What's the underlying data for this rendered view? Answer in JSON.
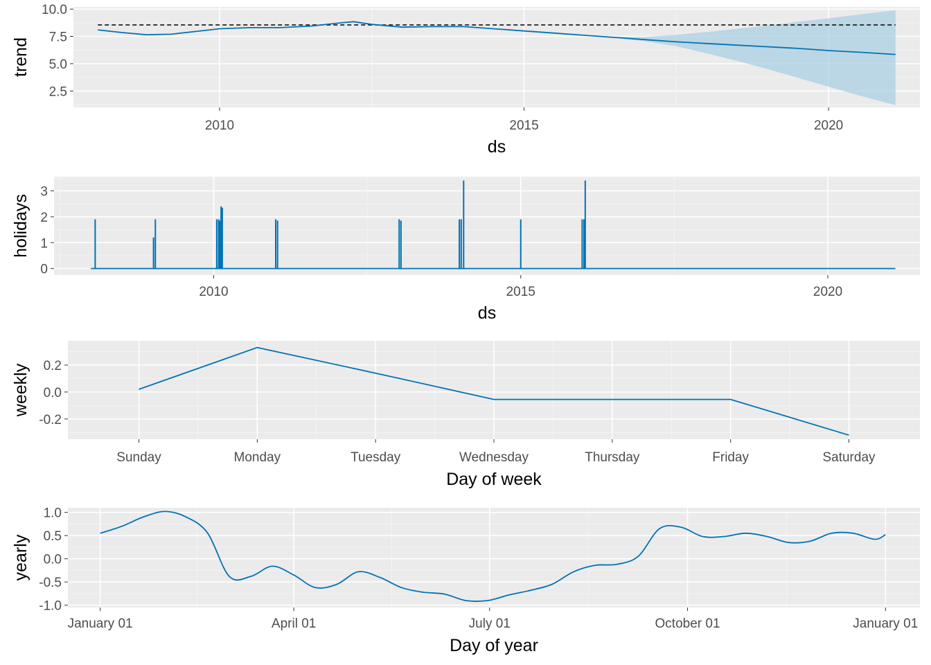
{
  "chart_data": [
    {
      "type": "line",
      "id": "trend",
      "xlabel": "ds",
      "ylabel": "trend",
      "xlim": [
        2007.6,
        2021.5
      ],
      "ylim": [
        1.0,
        10.2
      ],
      "xticks": [
        2010,
        2015,
        2020
      ],
      "xtick_labels": [
        "2010",
        "2015",
        "2020"
      ],
      "yticks": [
        2.5,
        5.0,
        7.5,
        10.0
      ],
      "ytick_labels": [
        "2.5",
        "5.0",
        "7.5",
        "10.0"
      ],
      "series": [
        {
          "kind": "line",
          "x": [
            2008.0,
            2008.4,
            2008.8,
            2009.2,
            2009.6,
            2010.0,
            2010.5,
            2011.0,
            2011.5,
            2012.0,
            2012.2,
            2012.5,
            2013.0,
            2013.5,
            2014.0,
            2014.5,
            2015.0,
            2015.5,
            2016.0,
            2016.5,
            2017.0,
            2017.5,
            2018.0,
            2018.5,
            2019.0,
            2019.5,
            2020.0,
            2020.5,
            2021.1
          ],
          "y": [
            8.1,
            7.85,
            7.65,
            7.7,
            7.95,
            8.2,
            8.3,
            8.3,
            8.45,
            8.75,
            8.85,
            8.6,
            8.35,
            8.4,
            8.4,
            8.2,
            8.0,
            7.8,
            7.6,
            7.4,
            7.2,
            7.0,
            6.85,
            6.7,
            6.55,
            6.4,
            6.2,
            6.05,
            5.85
          ]
        },
        {
          "kind": "band",
          "x": [
            2016.5,
            2017.0,
            2017.5,
            2018.0,
            2018.5,
            2019.0,
            2019.5,
            2020.0,
            2020.5,
            2021.1
          ],
          "upper": [
            7.45,
            7.45,
            7.65,
            7.9,
            8.2,
            8.5,
            8.85,
            9.15,
            9.5,
            9.9
          ],
          "lower": [
            7.35,
            7.05,
            6.6,
            5.95,
            5.25,
            4.5,
            3.7,
            2.9,
            2.1,
            1.2
          ]
        },
        {
          "kind": "dashed",
          "x": [
            2008.0,
            2021.1
          ],
          "y": [
            8.55,
            8.55
          ]
        }
      ]
    },
    {
      "type": "line",
      "id": "holidays",
      "xlabel": "ds",
      "ylabel": "holidays",
      "xlim": [
        2007.4,
        2021.5
      ],
      "ylim": [
        -0.25,
        3.55
      ],
      "xticks": [
        2010,
        2015,
        2020
      ],
      "xtick_labels": [
        "2010",
        "2015",
        "2020"
      ],
      "yticks": [
        0,
        1,
        2,
        3
      ],
      "ytick_labels": [
        "0",
        "1",
        "2",
        "3"
      ],
      "baseline": [
        2008.0,
        2021.1
      ],
      "spikes": [
        {
          "x": 2008.07,
          "y": 1.9
        },
        {
          "x": 2009.02,
          "y": 1.2
        },
        {
          "x": 2009.05,
          "y": 1.9
        },
        {
          "x": 2010.05,
          "y": 1.9
        },
        {
          "x": 2010.08,
          "y": 1.9
        },
        {
          "x": 2010.1,
          "y": 1.85
        },
        {
          "x": 2010.12,
          "y": 2.4
        },
        {
          "x": 2010.14,
          "y": 2.35
        },
        {
          "x": 2011.01,
          "y": 1.9
        },
        {
          "x": 2011.04,
          "y": 1.85
        },
        {
          "x": 2013.02,
          "y": 1.9
        },
        {
          "x": 2013.05,
          "y": 1.85
        },
        {
          "x": 2014.0,
          "y": 1.9
        },
        {
          "x": 2014.03,
          "y": 1.9
        },
        {
          "x": 2014.07,
          "y": 3.4
        },
        {
          "x": 2015.0,
          "y": 1.9
        },
        {
          "x": 2016.0,
          "y": 1.9
        },
        {
          "x": 2016.03,
          "y": 1.9
        },
        {
          "x": 2016.05,
          "y": 3.4
        }
      ]
    },
    {
      "type": "line",
      "id": "weekly",
      "xlabel": "Day of week",
      "ylabel": "weekly",
      "categories": [
        "Sunday",
        "Monday",
        "Tuesday",
        "Wednesday",
        "Thursday",
        "Friday",
        "Saturday"
      ],
      "values": [
        0.02,
        0.33,
        0.14,
        -0.055,
        -0.055,
        -0.055,
        -0.32
      ],
      "ylim": [
        -0.35,
        0.38
      ],
      "yticks": [
        -0.2,
        0.0,
        0.2
      ],
      "ytick_labels": [
        "-0.2",
        "0.0",
        "0.2"
      ]
    },
    {
      "type": "line",
      "id": "yearly",
      "xlabel": "Day of year",
      "ylabel": "yearly",
      "xlim": [
        -15,
        381
      ],
      "ylim": [
        -1.05,
        1.1
      ],
      "xticks": [
        0,
        90,
        181,
        273,
        365
      ],
      "xtick_labels": [
        "January 01",
        "April 01",
        "July 01",
        "October 01",
        "January 01"
      ],
      "yticks": [
        -1.0,
        -0.5,
        0.0,
        0.5,
        1.0
      ],
      "ytick_labels": [
        "-1.0",
        "-0.5",
        "0.0",
        "0.5",
        "1.0"
      ],
      "x": [
        0,
        10,
        20,
        30,
        40,
        50,
        60,
        70,
        80,
        90,
        100,
        110,
        120,
        130,
        140,
        150,
        160,
        170,
        180,
        190,
        200,
        210,
        220,
        230,
        240,
        250,
        260,
        270,
        280,
        290,
        300,
        310,
        320,
        330,
        340,
        350,
        360,
        365
      ],
      "y": [
        0.55,
        0.7,
        0.9,
        1.02,
        0.9,
        0.55,
        -0.38,
        -0.38,
        -0.16,
        -0.35,
        -0.62,
        -0.55,
        -0.28,
        -0.4,
        -0.62,
        -0.72,
        -0.76,
        -0.9,
        -0.9,
        -0.78,
        -0.68,
        -0.55,
        -0.28,
        -0.14,
        -0.12,
        0.05,
        0.65,
        0.68,
        0.48,
        0.48,
        0.55,
        0.48,
        0.35,
        0.38,
        0.55,
        0.55,
        0.42,
        0.52
      ]
    }
  ]
}
